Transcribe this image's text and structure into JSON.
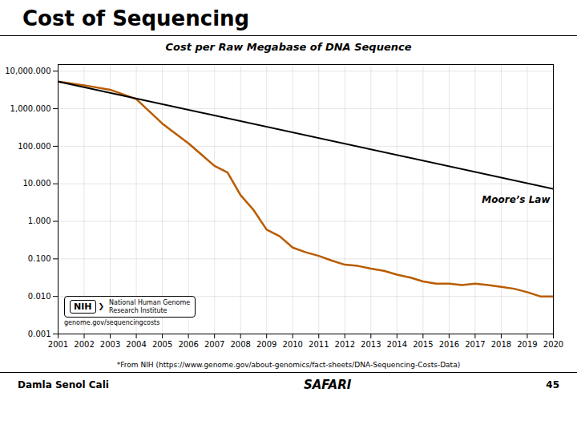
{
  "chart_data": {
    "type": "line",
    "title": "Cost of Sequencing",
    "subtitle": "Cost per Raw Megabase of DNA Sequence",
    "series": [
      {
        "x": [
          2001,
          2002,
          2003,
          2004,
          2005,
          2006,
          2007,
          2007.5,
          2008,
          2008.5,
          2009,
          2009.5,
          2010,
          2010.5,
          2011,
          2011.5,
          2012,
          2012.5,
          2013,
          2013.5,
          2014,
          2014.5,
          2015,
          2015.5,
          2016,
          2016.5,
          2017,
          2017.5,
          2018,
          2018.5,
          2019,
          2019.5,
          2020
        ],
        "values": [
          5292,
          4200,
          3200,
          1800,
          400,
          120,
          30,
          20,
          5,
          2,
          0.6,
          0.4,
          0.2,
          0.15,
          0.12,
          0.09,
          0.07,
          0.065,
          0.055,
          0.048,
          0.038,
          0.032,
          0.025,
          0.022,
          0.022,
          0.02,
          0.022,
          0.02,
          0.018,
          0.016,
          0.013,
          0.01,
          0.01
        ],
        "color": "#b85c00"
      },
      {
        "name": "Moore’s Law",
        "x": [
          2001,
          2020
        ],
        "values": [
          5292,
          7.3086115
        ]
      }
    ],
    "xlim": [
      2001,
      2020
    ],
    "xticks": [
      2001,
      2002,
      2003,
      2004,
      2005,
      2006,
      2007,
      2008,
      2009,
      2010,
      2011,
      2012,
      2013,
      2014,
      2015,
      2016,
      2017,
      2018,
      2019,
      2020
    ],
    "ylim": [
      0.001,
      15000
    ],
    "yticks": [
      0.001,
      {
        "value": 0.01,
        "label": "0.010"
      },
      {
        "value": 0.1,
        "label": "0.100"
      },
      {
        "value": 1.0,
        "label": "1.000"
      },
      {
        "value": 10.0,
        "label": "10.000"
      },
      {
        "value": 100.0,
        "label": "100.000"
      },
      {
        "value": 1000.0,
        "label": "1,000.000"
      },
      {
        "value": 10000.0,
        "label": "10,000.000"
      }
    ],
    "log": "y",
    "grid": true,
    "annotations": [
      "NIH",
      "❯",
      "National Human Genome",
      "Research Institute",
      "genome.gov/sequencingcosts",
      "*From NIH (https://www.genome.gov/about-genomics/fact-sheets/DNA-Sequencing-Costs-Data)",
      "Damla Senol Cali",
      "SAFARI",
      "45"
    ]
  }
}
